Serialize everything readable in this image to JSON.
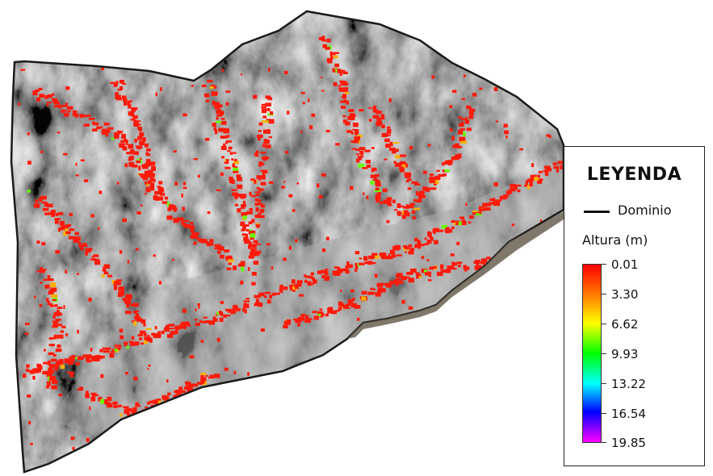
{
  "legend": {
    "title": "LEYENDA",
    "domain_label": "Dominio",
    "altura_label": "Altura (m)",
    "ramp_values": [
      "0.01",
      "3.30",
      "6.62",
      "9.93",
      "13.22",
      "16.54",
      "19.85"
    ]
  },
  "colors": {
    "terrain_dark": "#1e1e1e",
    "terrain_light": "#8a8a8a",
    "flow_low": "#ff1a0a",
    "flow_mid": "#ffb000",
    "flow_high": "#66ff00",
    "ramp": [
      "#ff0000",
      "#ff7a00",
      "#ffff00",
      "#00ff00",
      "#00ffff",
      "#0000ff",
      "#ff00ff"
    ]
  }
}
